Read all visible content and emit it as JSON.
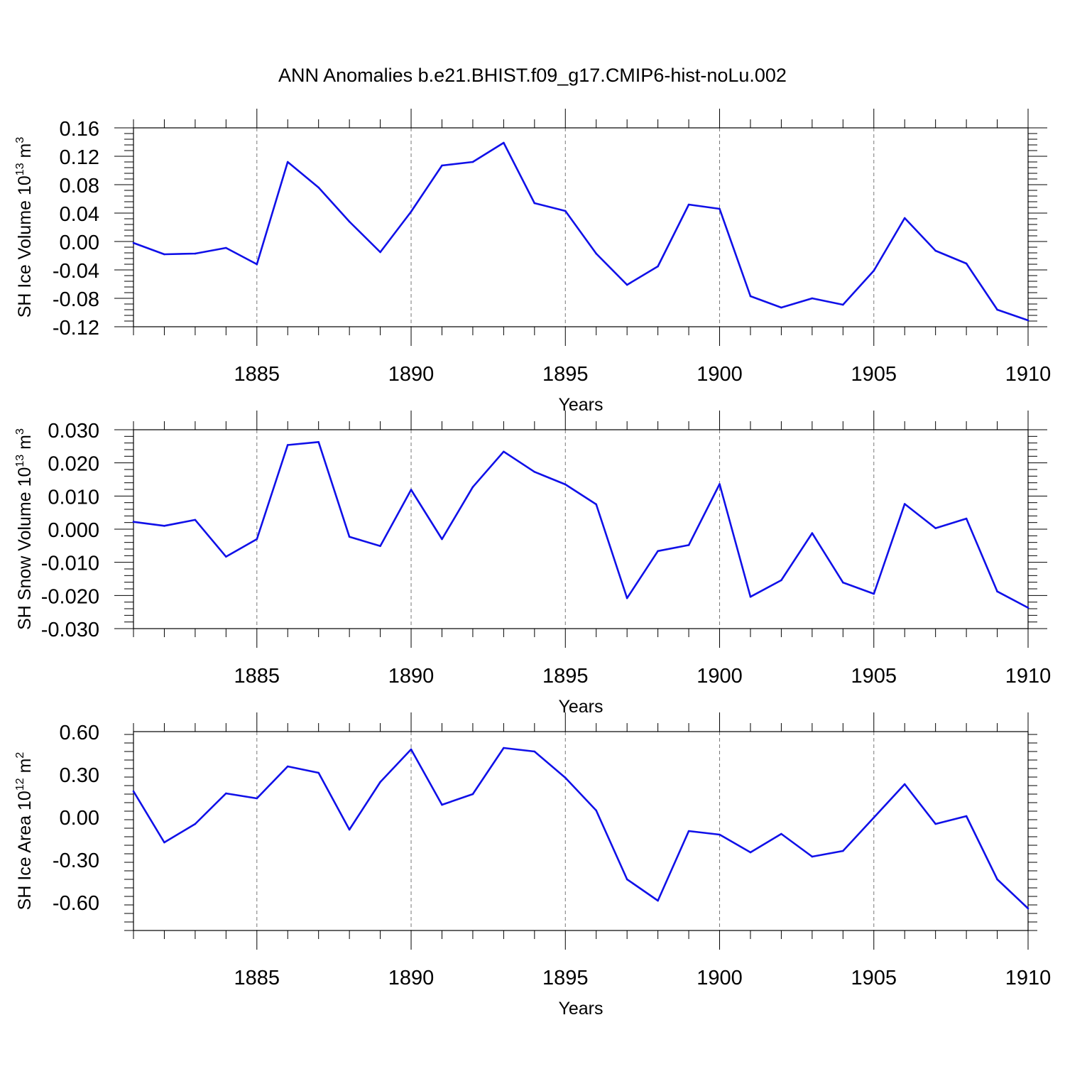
{
  "title": "ANN Anomalies b.e21.BHIST.f09_g17.CMIP6-hist-noLu.002",
  "line_color": "#1010e8",
  "chart_data": [
    {
      "type": "line",
      "ylabel_main": "SH Ice Volume 10",
      "ylabel_exp": "13",
      "ylabel_unit": " m",
      "ylabel_unit_exp": "3",
      "xlabel": "Years",
      "xlim": [
        1881,
        1910
      ],
      "ylim": [
        -0.12,
        0.16
      ],
      "yticks": [
        -0.12,
        -0.08,
        -0.04,
        0.0,
        0.04,
        0.08,
        0.12,
        0.16
      ],
      "ytick_labels": [
        "-0.12",
        "-0.08",
        "-0.04",
        "0.00",
        "0.04",
        "0.08",
        "0.12",
        "0.16"
      ],
      "xticks": [
        1885,
        1890,
        1895,
        1900,
        1905,
        1910
      ],
      "xtick_labels": [
        "1885",
        "1890",
        "1895",
        "1900",
        "1905",
        "1910"
      ],
      "x": [
        1881,
        1882,
        1883,
        1884,
        1885,
        1886,
        1887,
        1888,
        1889,
        1890,
        1891,
        1892,
        1893,
        1894,
        1895,
        1896,
        1897,
        1898,
        1899,
        1900,
        1901,
        1902,
        1903,
        1904,
        1905,
        1906,
        1907,
        1908,
        1909,
        1910
      ],
      "values": [
        -0.002,
        -0.018,
        -0.017,
        -0.009,
        -0.032,
        0.112,
        0.076,
        0.028,
        -0.015,
        0.042,
        0.107,
        0.112,
        0.139,
        0.054,
        0.043,
        -0.017,
        -0.061,
        -0.035,
        0.052,
        0.046,
        -0.077,
        -0.093,
        -0.08,
        -0.089,
        -0.041,
        0.033,
        -0.013,
        -0.031,
        -0.096,
        -0.111
      ]
    },
    {
      "type": "line",
      "ylabel_main": "SH Snow Volume 10",
      "ylabel_exp": "13",
      "ylabel_unit": " m",
      "ylabel_unit_exp": "3",
      "xlabel": "Years",
      "xlim": [
        1881,
        1910
      ],
      "ylim": [
        -0.03,
        0.03
      ],
      "yticks": [
        -0.03,
        -0.02,
        -0.01,
        0.0,
        0.01,
        0.02,
        0.03
      ],
      "ytick_labels": [
        "-0.030",
        "-0.020",
        "-0.010",
        "0.000",
        "0.010",
        "0.020",
        "0.030"
      ],
      "xticks": [
        1885,
        1890,
        1895,
        1900,
        1905,
        1910
      ],
      "xtick_labels": [
        "1885",
        "1890",
        "1895",
        "1900",
        "1905",
        "1910"
      ],
      "x": [
        1881,
        1882,
        1883,
        1884,
        1885,
        1886,
        1887,
        1888,
        1889,
        1890,
        1891,
        1892,
        1893,
        1894,
        1895,
        1896,
        1897,
        1898,
        1899,
        1900,
        1901,
        1902,
        1903,
        1904,
        1905,
        1906,
        1907,
        1908,
        1909,
        1910
      ],
      "values": [
        0.0022,
        0.001,
        0.0028,
        -0.0083,
        -0.003,
        0.0254,
        0.0263,
        -0.0023,
        -0.0051,
        0.0119,
        -0.003,
        0.0127,
        0.0234,
        0.0173,
        0.0135,
        0.0075,
        -0.0208,
        -0.0066,
        -0.0048,
        0.0136,
        -0.0204,
        -0.0154,
        -0.0012,
        -0.0161,
        -0.0195,
        0.0076,
        0.0003,
        0.0032,
        -0.0188,
        -0.0237
      ]
    },
    {
      "type": "line",
      "ylabel_main": "SH Ice Area 10",
      "ylabel_exp": "12",
      "ylabel_unit": " m",
      "ylabel_unit_exp": "2",
      "xlabel": "Years",
      "xlim": [
        1881,
        1910
      ],
      "ylim": [
        -0.8,
        0.6
      ],
      "yticks": [
        -0.6,
        -0.3,
        0.0,
        0.3,
        0.6
      ],
      "ytick_labels": [
        "-0.60",
        "-0.30",
        "0.00",
        "0.30",
        "0.60"
      ],
      "xticks": [
        1885,
        1890,
        1895,
        1900,
        1905,
        1910
      ],
      "xtick_labels": [
        "1885",
        "1890",
        "1895",
        "1900",
        "1905",
        "1910"
      ],
      "x": [
        1881,
        1882,
        1883,
        1884,
        1885,
        1886,
        1887,
        1888,
        1889,
        1890,
        1891,
        1892,
        1893,
        1894,
        1895,
        1896,
        1897,
        1898,
        1899,
        1900,
        1901,
        1902,
        1903,
        1904,
        1905,
        1906,
        1907,
        1908,
        1909,
        1910
      ],
      "values": [
        0.18,
        -0.18,
        -0.05,
        0.165,
        0.13,
        0.355,
        0.31,
        -0.09,
        0.245,
        0.475,
        0.085,
        0.16,
        0.485,
        0.46,
        0.275,
        0.045,
        -0.44,
        -0.59,
        -0.1,
        -0.125,
        -0.25,
        -0.12,
        -0.28,
        -0.24,
        -0.005,
        0.23,
        -0.05,
        0.005,
        -0.44,
        -0.645
      ]
    }
  ]
}
